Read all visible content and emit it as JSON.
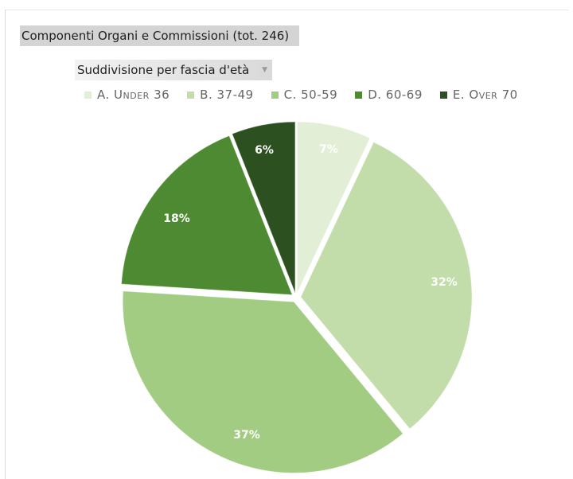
{
  "chart_data": {
    "type": "pie",
    "title": "Componenti Organi e Commissioni (tot. 246)",
    "subtitle": "Suddivisione per fascia d'età",
    "categories": [
      "A. Under 36",
      "B. 37-49",
      "C. 50-59",
      "D. 60-69",
      "E. Over 70"
    ],
    "values": [
      7,
      32,
      37,
      18,
      6
    ],
    "data_labels": [
      "7%",
      "32%",
      "37%",
      "18%",
      "6%"
    ],
    "colors": [
      "#e2eed6",
      "#c2dcaa",
      "#a2cc82",
      "#4e8a32",
      "#2c5020"
    ],
    "legend_position": "top"
  },
  "dropdown_icon": "chevron-down-icon"
}
